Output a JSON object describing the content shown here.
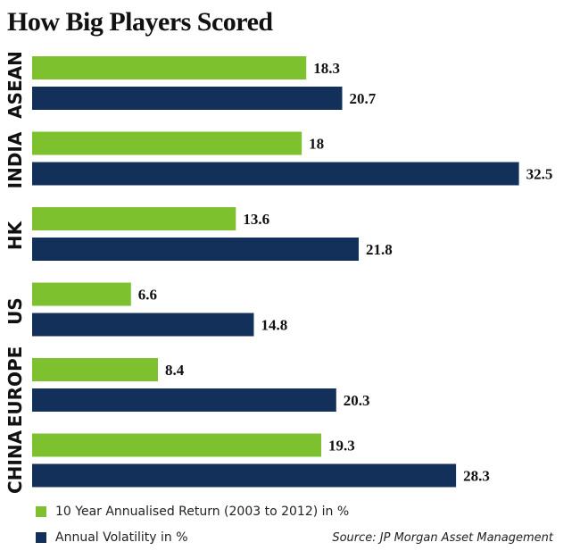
{
  "chart_data": {
    "type": "bar",
    "orientation": "horizontal",
    "title": "How Big Players Scored",
    "categories": [
      "ASEAN",
      "INDIA",
      "HK",
      "US",
      "EUROPE",
      "CHINA"
    ],
    "series": [
      {
        "name": "10 Year Annualised Return (2003 to 2012) in %",
        "color": "#7dc12f",
        "values": [
          18.3,
          18,
          13.6,
          6.6,
          8.4,
          19.3
        ],
        "labels": [
          "18.3",
          "18",
          "13.6",
          "6.6",
          "8.4",
          "19.3"
        ]
      },
      {
        "name": "Annual Volatility in %",
        "color": "#13305a",
        "values": [
          20.7,
          32.5,
          21.8,
          14.8,
          20.3,
          28.3
        ],
        "labels": [
          "20.7",
          "32.5",
          "21.8",
          "14.8",
          "20.3",
          "28.3"
        ]
      }
    ],
    "xlim": [
      0,
      33
    ],
    "grid": false,
    "legend_position": "bottom-left",
    "source": "Source: JP Morgan Asset Management"
  }
}
